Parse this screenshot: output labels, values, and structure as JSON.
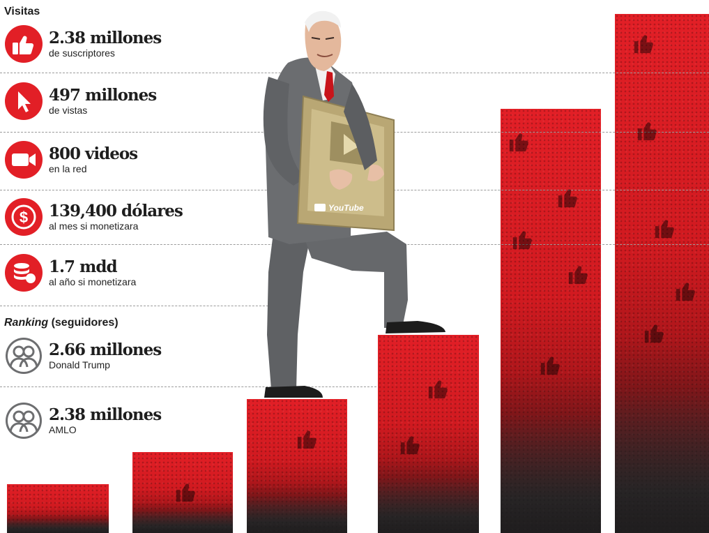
{
  "header": {
    "visitas_label": "Visitas"
  },
  "stats": [
    {
      "icon": "thumbs-up-icon",
      "value": "2.38 millones",
      "caption": "de suscriptores"
    },
    {
      "icon": "cursor-icon",
      "value": "497 millones",
      "caption": "de vistas"
    },
    {
      "icon": "video-camera-icon",
      "value": "800 videos",
      "caption": "en la red"
    },
    {
      "icon": "dollar-coin-icon",
      "value": "139,400 dólares",
      "caption": "al mes si monetizara"
    },
    {
      "icon": "coin-stack-icon",
      "value": "1.7 mdd",
      "caption": "al año si monetizara"
    }
  ],
  "ranking": {
    "title_italic": "Ranking",
    "title_rest": " (seguidores)",
    "entries": [
      {
        "icon": "people-icon",
        "value": "2.66 millones",
        "name": "Donald Trump"
      },
      {
        "icon": "people-icon",
        "value": "2.38 millones",
        "name": "AMLO"
      }
    ]
  },
  "illustration": {
    "plaque_label": "YouTube"
  },
  "colors": {
    "accent_red": "#e21f26",
    "dark_ground": "#2a2728",
    "suit_gray": "#6b6d70"
  }
}
